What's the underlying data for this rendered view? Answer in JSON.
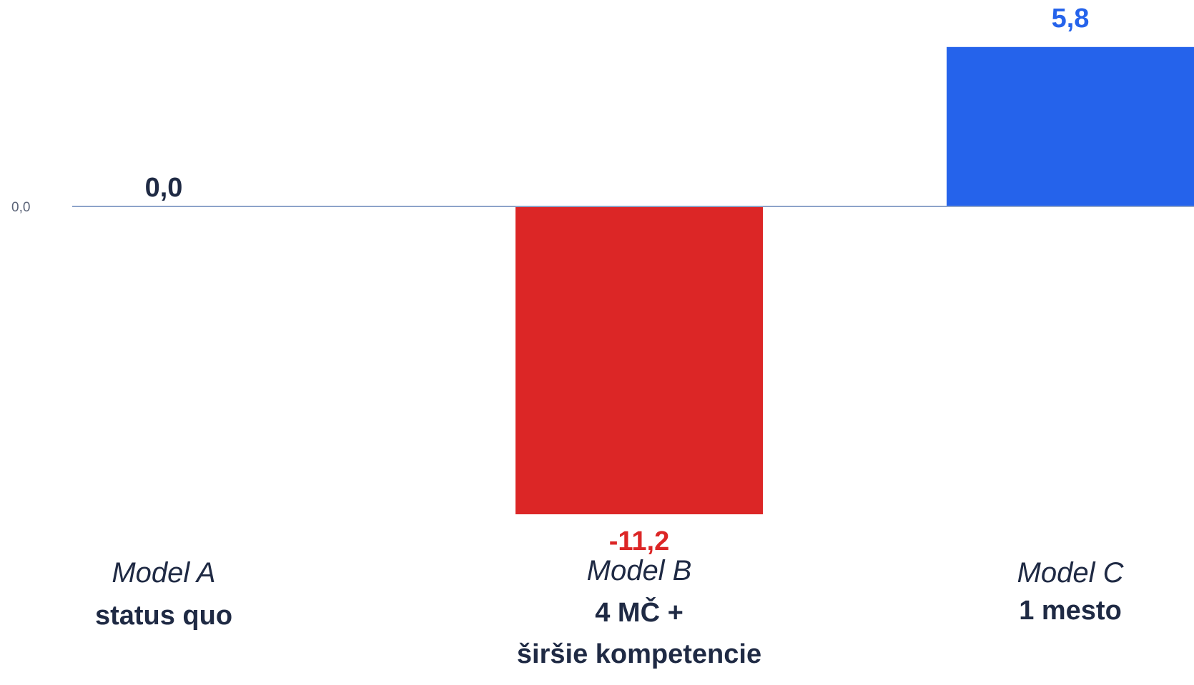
{
  "chart_data": {
    "type": "bar",
    "title": "",
    "xlabel": "",
    "ylabel": "",
    "ylim": [
      -12.5,
      6.5
    ],
    "grid": false,
    "legend": "none",
    "baseline_value": 0,
    "y_tick_labels": [
      "0,0"
    ],
    "categories": [
      {
        "name": "Model A",
        "lines": [
          "status quo"
        ]
      },
      {
        "name": "Model B",
        "lines": [
          "4 MČ +",
          "širšie kompetencie"
        ]
      },
      {
        "name": "Model C",
        "lines": [
          "1 mesto"
        ]
      }
    ],
    "values": [
      0.0,
      -11.2,
      5.8
    ],
    "value_labels": [
      "0,0",
      "-11,2",
      "5,8"
    ],
    "colors": {
      "positive": "#2563eb",
      "negative": "#dc2626",
      "neutral": "#1f2a44",
      "baseline": "#8da3c9",
      "text": "#1f2a44"
    }
  }
}
